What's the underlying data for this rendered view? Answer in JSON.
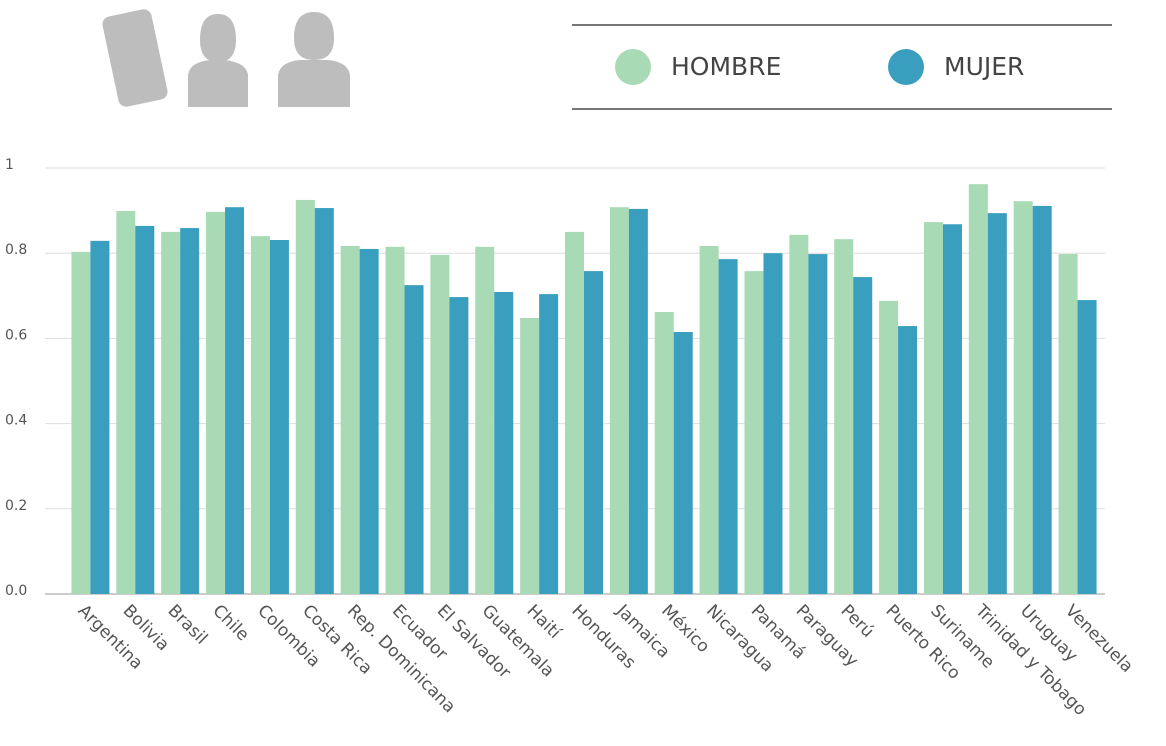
{
  "chart_data": {
    "type": "bar",
    "categories": [
      "Argentina",
      "Bolivia",
      "Brasil",
      "Chile",
      "Colombia",
      "Costa Rica",
      "Rep. Dominicana",
      "Ecuador",
      "El Salvador",
      "Guatemala",
      "Haití",
      "Honduras",
      "Jamaica",
      "México",
      "Nicaragua",
      "Panamá",
      "Paraguay",
      "Perú",
      "Puerto Rico",
      "Suriname",
      "Trinidad y Tobago",
      "Uruguay",
      "Venezuela"
    ],
    "series": [
      {
        "name": "HOMBRE",
        "color": "#a8dab5",
        "values": [
          0.803,
          0.899,
          0.85,
          0.897,
          0.84,
          0.925,
          0.817,
          0.815,
          0.796,
          0.815,
          0.648,
          0.85,
          0.908,
          0.662,
          0.817,
          0.758,
          0.843,
          0.833,
          0.688,
          0.873,
          0.962,
          0.922,
          0.798
        ]
      },
      {
        "name": "MUJER",
        "color": "#3a9fbf",
        "values": [
          0.829,
          0.864,
          0.859,
          0.908,
          0.831,
          0.906,
          0.81,
          0.725,
          0.697,
          0.709,
          0.704,
          0.758,
          0.904,
          0.615,
          0.786,
          0.8,
          0.798,
          0.744,
          0.629,
          0.868,
          0.894,
          0.911,
          0.69
        ]
      }
    ],
    "ylim": [
      0,
      1
    ],
    "yticks": [
      {
        "value": 0,
        "label": "0.0"
      },
      0.2,
      0.4,
      0.6,
      0.8,
      1
    ],
    "grid": true
  }
}
